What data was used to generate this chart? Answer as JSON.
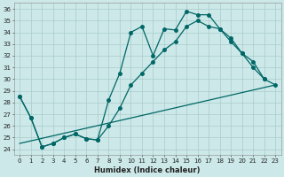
{
  "xlabel": "Humidex (Indice chaleur)",
  "bg_color": "#cce8e8",
  "grid_color": "#aacccc",
  "line_color": "#006666",
  "xlim": [
    -0.5,
    23.5
  ],
  "ylim": [
    23.5,
    36.5
  ],
  "xticks": [
    0,
    1,
    2,
    3,
    4,
    5,
    6,
    7,
    8,
    9,
    10,
    11,
    12,
    13,
    14,
    15,
    16,
    17,
    18,
    19,
    20,
    21,
    22,
    23
  ],
  "yticks": [
    24,
    25,
    26,
    27,
    28,
    29,
    30,
    31,
    32,
    33,
    34,
    35,
    36
  ],
  "series1_x": [
    0,
    1,
    2,
    3,
    4,
    5,
    6,
    7,
    8,
    9,
    10,
    11,
    12,
    13,
    14,
    15,
    16,
    17,
    18,
    19,
    20,
    21,
    22
  ],
  "series1_y": [
    28.5,
    26.7,
    24.2,
    24.5,
    25.0,
    25.3,
    24.9,
    24.8,
    28.2,
    30.5,
    34.0,
    34.5,
    32.0,
    34.3,
    34.2,
    35.8,
    35.5,
    35.5,
    34.3,
    33.2,
    32.2,
    31.5,
    30.0
  ],
  "series2_x": [
    0,
    1,
    2,
    3,
    4,
    5,
    6,
    7,
    8,
    9,
    10,
    11,
    12,
    13,
    14,
    15,
    16,
    17,
    18,
    19,
    20,
    21,
    22,
    23
  ],
  "series2_y": [
    28.5,
    26.7,
    24.2,
    24.5,
    25.0,
    25.3,
    24.9,
    24.8,
    26.0,
    27.5,
    29.5,
    30.5,
    31.5,
    32.5,
    33.2,
    34.5,
    35.0,
    34.5,
    34.3,
    33.5,
    32.2,
    31.0,
    30.0,
    29.5
  ],
  "series3_x": [
    0,
    23
  ],
  "series3_y": [
    24.5,
    29.5
  ],
  "marker_size": 2.5,
  "line_width": 0.9,
  "tick_fontsize": 5.0,
  "xlabel_fontsize": 6.0
}
